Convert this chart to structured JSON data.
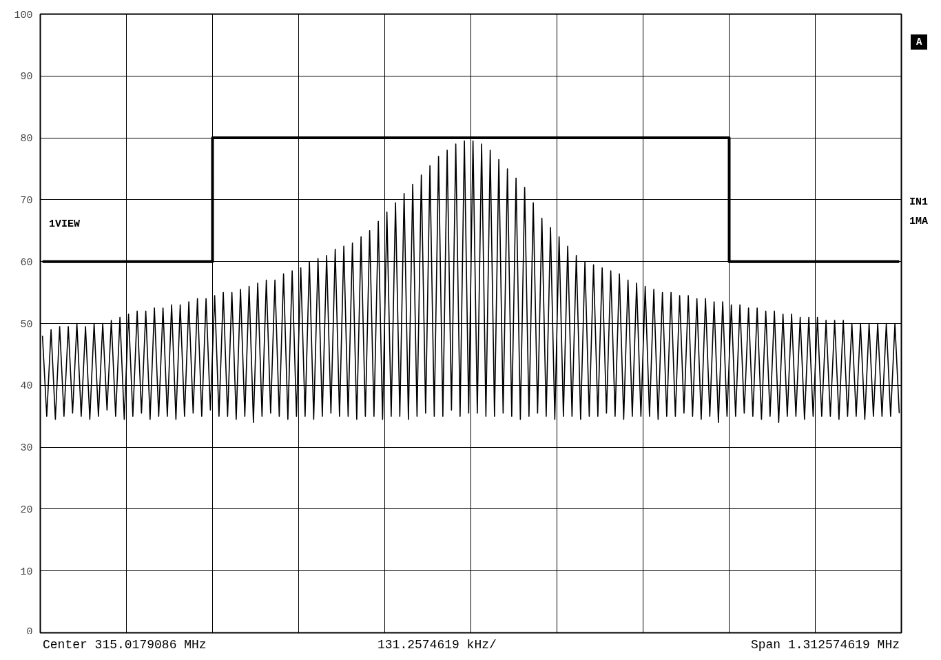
{
  "chart_data": {
    "type": "line",
    "categories": [
      null,
      null,
      null,
      null,
      null,
      null,
      null,
      null,
      null,
      null,
      null,
      null,
      null,
      null,
      null,
      null,
      null,
      null,
      null,
      null,
      null,
      null,
      null,
      null,
      null,
      null,
      null,
      null,
      null,
      null,
      null,
      null,
      null,
      null,
      null,
      null,
      null,
      null,
      null,
      null,
      null,
      null,
      null,
      null,
      null,
      null,
      null,
      null,
      null,
      null,
      null,
      null,
      null,
      null,
      null,
      null,
      null,
      null,
      null,
      null,
      null,
      null,
      null,
      null,
      null,
      null,
      null,
      null,
      null,
      null,
      null,
      null,
      null,
      null,
      null,
      null,
      null,
      null,
      null,
      null,
      null,
      null,
      null,
      null,
      null,
      null,
      null,
      null,
      null,
      null,
      null,
      null,
      null,
      null,
      null,
      null,
      null,
      null,
      null,
      null,
      null,
      null,
      null,
      null,
      null,
      null,
      null,
      null,
      null,
      null,
      null,
      null,
      null,
      null,
      null,
      null,
      null,
      null,
      null,
      null,
      null,
      null,
      null,
      null,
      null,
      null,
      null,
      null,
      null,
      null,
      null,
      null,
      null,
      null,
      null,
      null,
      null,
      null,
      null,
      null,
      null,
      null,
      null,
      null,
      null,
      null,
      null,
      null,
      null,
      null,
      null,
      null,
      null,
      null,
      null,
      null,
      null,
      null,
      null,
      null,
      null,
      null,
      null,
      null,
      null,
      null,
      null,
      null,
      null,
      null,
      null,
      null,
      null,
      null,
      null,
      null,
      null,
      null,
      null,
      null,
      null,
      null,
      null,
      null,
      null,
      null,
      null,
      null,
      null,
      null,
      null,
      null,
      null,
      null,
      null,
      null,
      null,
      null,
      null,
      null
    ],
    "series": [
      {
        "color": "#000000",
        "values": [
          48,
          35,
          49,
          34.5,
          49.5,
          35,
          49.5,
          35.5,
          50,
          35,
          49.5,
          34.5,
          50,
          35,
          50,
          36,
          50.5,
          35,
          51,
          34.5,
          51.5,
          35,
          52,
          35.5,
          52,
          34.5,
          52.5,
          35,
          52.5,
          35,
          53,
          34.5,
          53,
          35,
          53.5,
          35.5,
          54,
          35,
          54,
          36,
          54.5,
          35,
          55,
          35,
          55,
          34.5,
          55.5,
          35,
          56,
          34,
          56.5,
          35,
          57,
          35.5,
          57,
          35,
          58,
          34.5,
          58.5,
          35,
          59,
          35,
          60,
          34.5,
          60.5,
          35,
          61,
          35.5,
          62,
          35,
          62.5,
          35,
          63,
          34.5,
          64,
          35,
          65,
          35,
          66.5,
          34.5,
          68,
          35,
          69.5,
          35,
          71,
          34.5,
          72.5,
          35,
          74,
          35.5,
          75.5,
          35,
          77,
          35,
          78,
          36,
          79,
          35,
          79.5,
          35.5,
          79.5,
          35.5,
          79,
          35,
          78,
          35,
          76.5,
          35.5,
          75,
          35,
          73.5,
          34.5,
          72,
          35,
          69.5,
          35.5,
          67,
          35,
          65.5,
          34.5,
          64,
          35,
          62.5,
          35,
          61,
          34.5,
          60,
          35,
          59.5,
          35,
          59,
          35.5,
          58.5,
          35,
          58,
          34.5,
          57,
          35,
          56.5,
          35,
          56,
          35,
          55.5,
          34.5,
          55,
          35,
          55,
          35,
          54.5,
          35.5,
          54.5,
          35,
          54,
          34.5,
          54,
          35,
          53.5,
          34,
          53.5,
          35,
          53,
          35,
          53,
          35.5,
          52.5,
          35,
          52.5,
          34.5,
          52,
          35,
          52,
          34,
          51.5,
          35,
          51.5,
          35,
          51,
          34.5,
          51,
          35,
          51,
          35,
          50.5,
          35,
          50.5,
          34.5,
          50.5,
          35,
          50,
          35,
          50,
          34.5,
          50,
          35,
          50,
          35,
          50,
          35,
          50,
          35.5
        ]
      },
      {
        "type": "step",
        "color": "#000000",
        "values": [
          60,
          60,
          60,
          60,
          60,
          60,
          60,
          60,
          60,
          60,
          60,
          60,
          60,
          60,
          60,
          60,
          60,
          60,
          60,
          60,
          60,
          60,
          60,
          60,
          60,
          60,
          60,
          60,
          60,
          60,
          60,
          60,
          60,
          60,
          60,
          60,
          60,
          60,
          60,
          60,
          80,
          80,
          80,
          80,
          80,
          80,
          80,
          80,
          80,
          80,
          80,
          80,
          80,
          80,
          80,
          80,
          80,
          80,
          80,
          80,
          80,
          80,
          80,
          80,
          80,
          80,
          80,
          80,
          80,
          80,
          80,
          80,
          80,
          80,
          80,
          80,
          80,
          80,
          80,
          80,
          80,
          80,
          80,
          80,
          80,
          80,
          80,
          80,
          80,
          80,
          80,
          80,
          80,
          80,
          80,
          80,
          80,
          80,
          80,
          80,
          80,
          80,
          80,
          80,
          80,
          80,
          80,
          80,
          80,
          80,
          80,
          80,
          80,
          80,
          80,
          80,
          80,
          80,
          80,
          80,
          80,
          80,
          80,
          80,
          80,
          80,
          80,
          80,
          80,
          80,
          80,
          80,
          80,
          80,
          80,
          80,
          80,
          80,
          80,
          80,
          80,
          80,
          80,
          80,
          80,
          80,
          80,
          80,
          80,
          80,
          80,
          80,
          80,
          80,
          80,
          80,
          80,
          80,
          80,
          80,
          60,
          60,
          60,
          60,
          60,
          60,
          60,
          60,
          60,
          60,
          60,
          60,
          60,
          60,
          60,
          60,
          60,
          60,
          60,
          60,
          60,
          60,
          60,
          60,
          60,
          60,
          60,
          60,
          60,
          60,
          60,
          60,
          60,
          60,
          60,
          60,
          60,
          60,
          60,
          60
        ]
      }
    ],
    "ylim": [
      0,
      100
    ],
    "yticks": [
      0,
      10,
      20,
      30,
      40,
      50,
      60,
      70,
      80,
      90,
      100
    ],
    "grid": true,
    "annotations": [
      "1VIEW",
      "A",
      "IN1",
      "1MA",
      "Center 315.0179086 MHz",
      "131.2574619 kHz/",
      "Span 1.312574619 MHz"
    ]
  }
}
